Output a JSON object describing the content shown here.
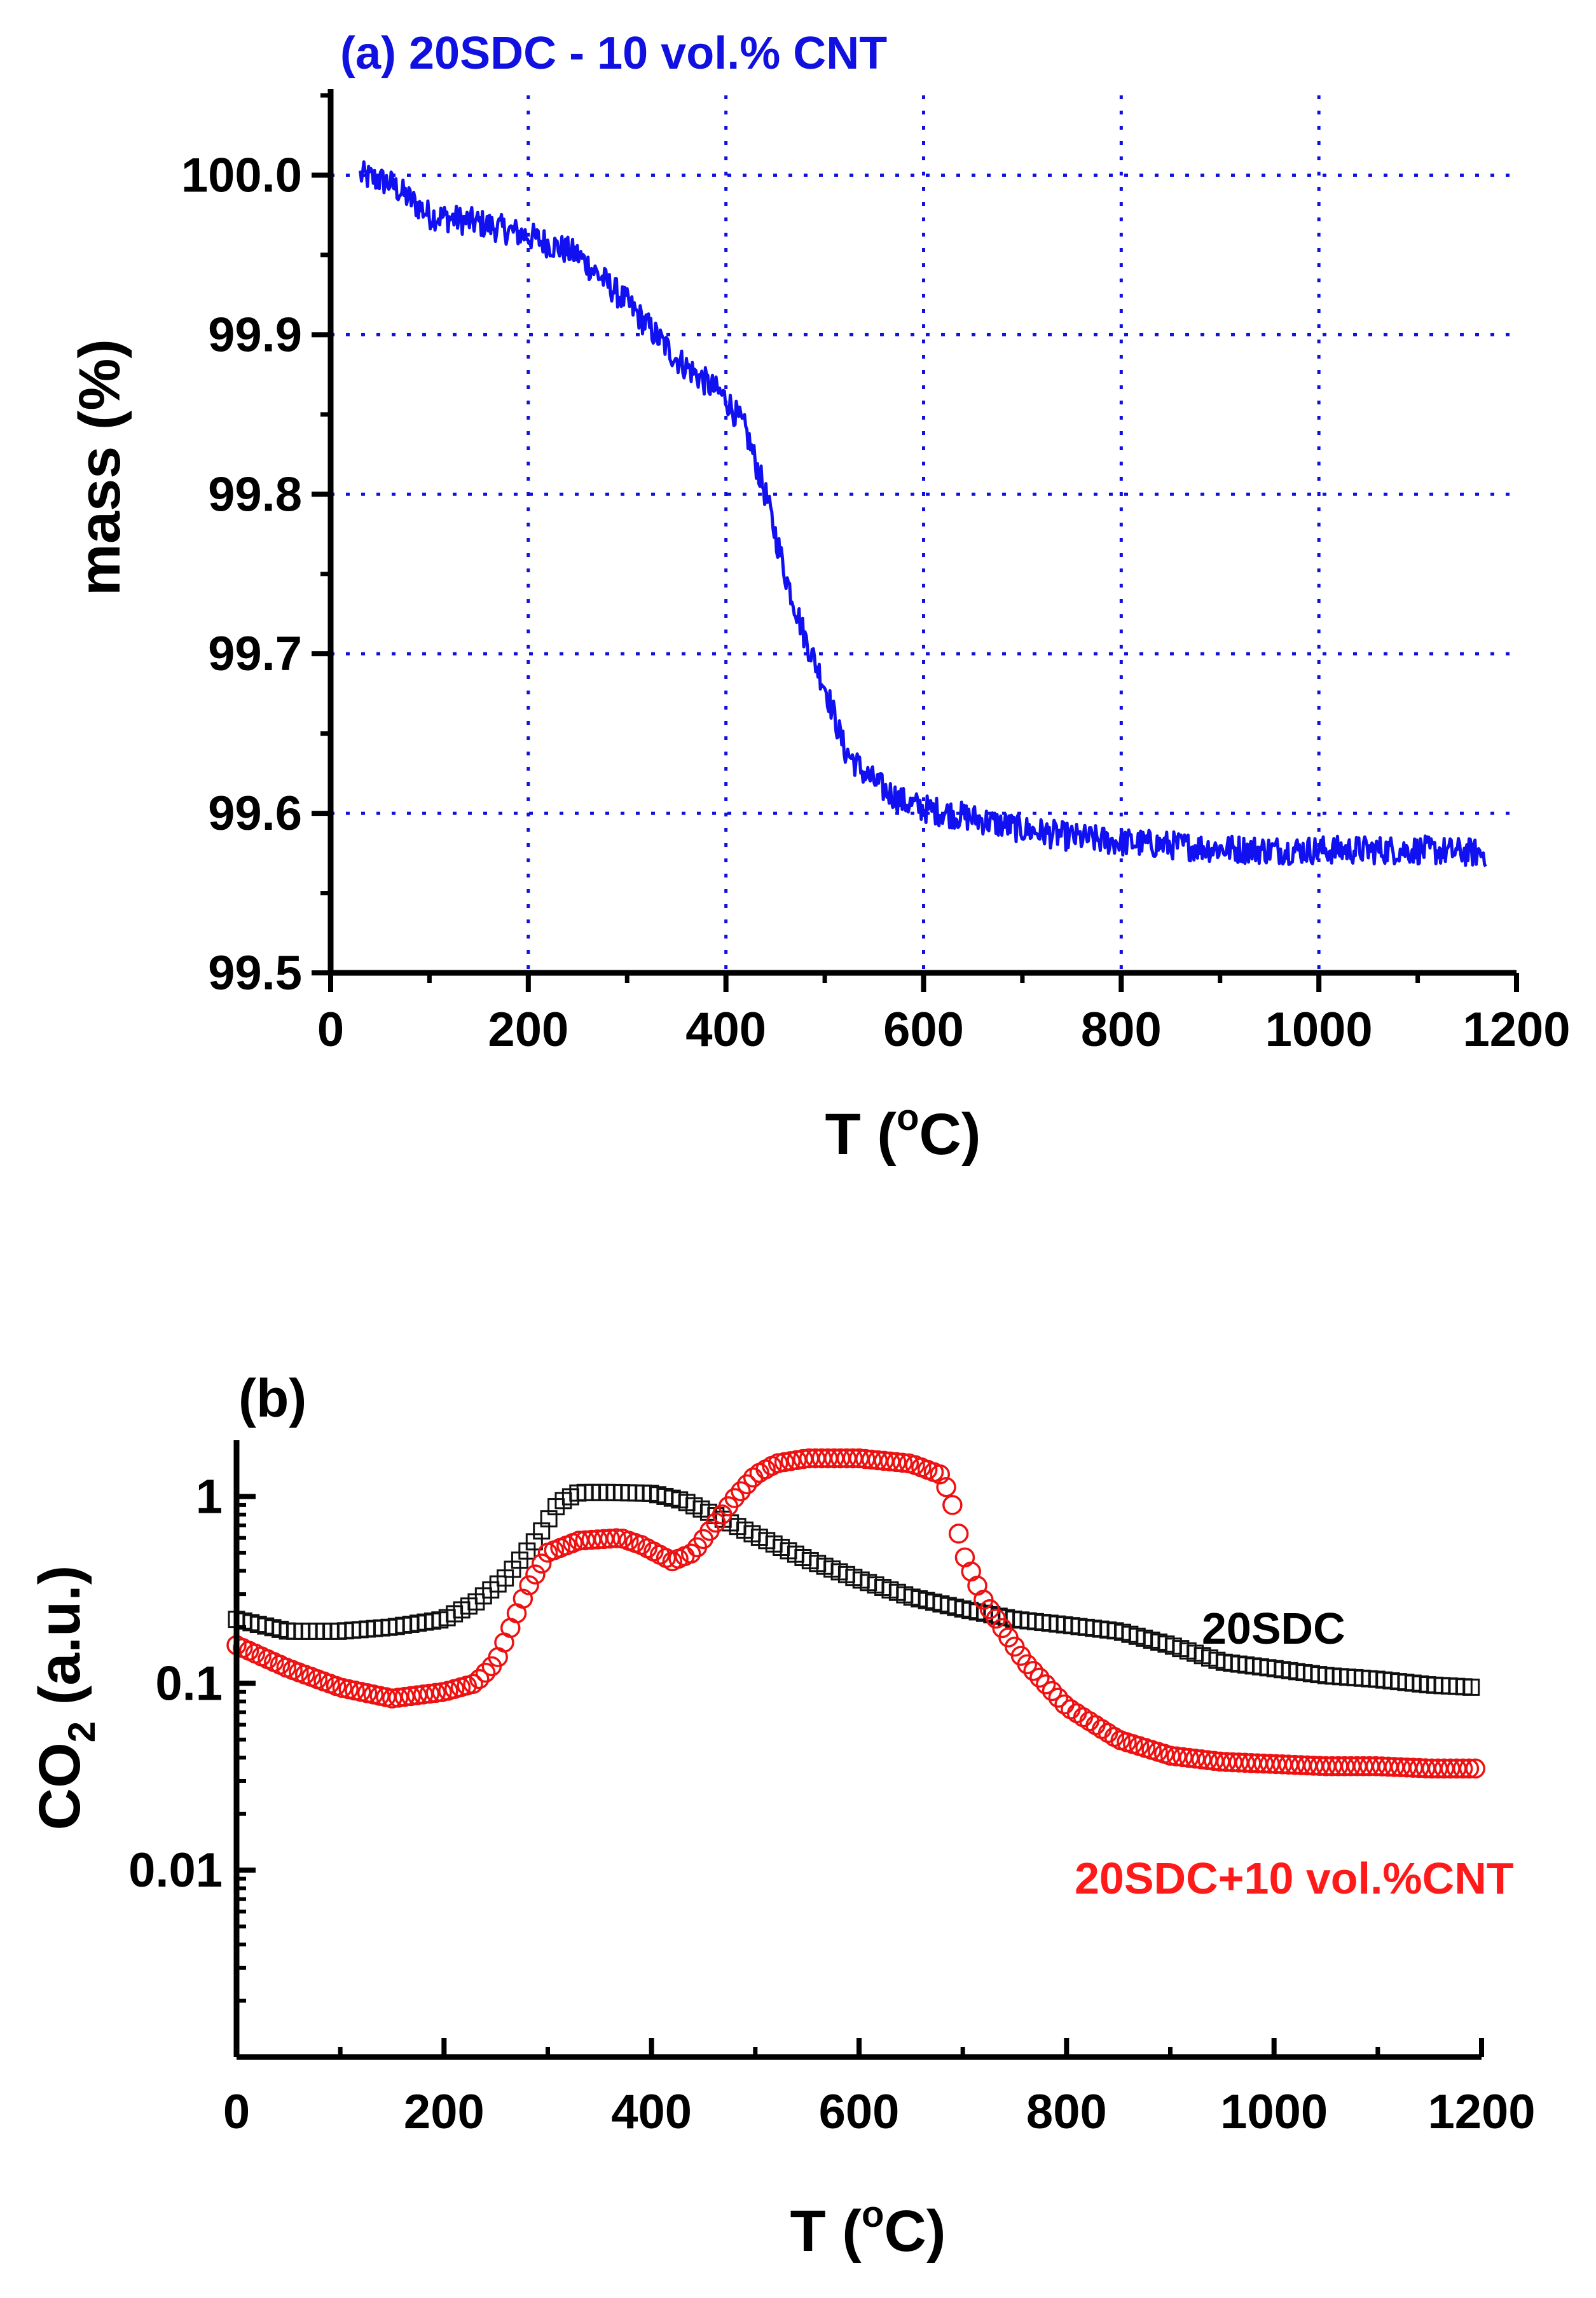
{
  "chart_data": [
    {
      "type": "line",
      "title": "(a) 20SDC - 10 vol.% CNT",
      "title_color": "#1010e0",
      "xlabel": "T (",
      "xlabel_sup": "o",
      "xlabel_end": "C)",
      "ylabel": "mass (%)",
      "xlim": [
        0,
        1200
      ],
      "ylim": [
        99.5,
        100.05
      ],
      "yscale": "linear",
      "grid": true,
      "grid_color": "#1010e0",
      "x_ticks": [
        0,
        200,
        400,
        600,
        800,
        1000,
        1200
      ],
      "x_tick_labels": [
        "0",
        "200",
        "400",
        "600",
        "800",
        "1000",
        "1200"
      ],
      "y_ticks": [
        99.5,
        99.6,
        99.7,
        99.8,
        99.9,
        100.0
      ],
      "y_tick_labels": [
        "99.5",
        "99.6",
        "99.7",
        "99.8",
        "99.9",
        "100.0"
      ],
      "series": [
        {
          "color": "#1010f0",
          "noise": 0.009,
          "x": [
            30,
            60,
            100,
            150,
            200,
            250,
            300,
            350,
            400,
            420,
            440,
            460,
            480,
            500,
            520,
            540,
            560,
            580,
            600,
            650,
            700,
            750,
            800,
            850,
            900,
            950,
            1000,
            1050,
            1100,
            1170
          ],
          "y": [
            100.0,
            99.995,
            99.975,
            99.97,
            99.962,
            99.95,
            99.92,
            99.885,
            99.86,
            99.84,
            99.8,
            99.75,
            99.71,
            99.68,
            99.64,
            99.625,
            99.615,
            99.607,
            99.603,
            99.597,
            99.59,
            99.585,
            99.582,
            99.58,
            99.578,
            99.577,
            99.577,
            99.577,
            99.577,
            99.575
          ]
        }
      ]
    },
    {
      "type": "scatter",
      "title": "(b)",
      "xlabel": "T (",
      "xlabel_sup": "o",
      "xlabel_end": "C)",
      "ylabel": "CO",
      "ylabel_sub": "2",
      "ylabel_end": " (a.u.)",
      "xlim": [
        0,
        1200
      ],
      "ylim": [
        0.001,
        2
      ],
      "yscale": "log",
      "grid": false,
      "x_ticks": [
        0,
        200,
        400,
        600,
        800,
        1000,
        1200
      ],
      "x_tick_labels": [
        "0",
        "200",
        "400",
        "600",
        "800",
        "1000",
        "1200"
      ],
      "y_ticks": [
        0.01,
        0.1,
        1
      ],
      "y_tick_labels": [
        "0.01",
        "0.1",
        "1"
      ],
      "series": [
        {
          "name": "20SDC",
          "label_color": "#000000",
          "color": "#111111",
          "marker": "square",
          "x": [
            0,
            50,
            100,
            150,
            200,
            230,
            260,
            290,
            310,
            330,
            360,
            400,
            430,
            460,
            500,
            550,
            600,
            650,
            700,
            750,
            800,
            850,
            900,
            950,
            1000,
            1050,
            1100,
            1150,
            1195
          ],
          "y": [
            0.22,
            0.19,
            0.19,
            0.2,
            0.22,
            0.27,
            0.37,
            0.6,
            0.92,
            1.05,
            1.05,
            1.04,
            0.95,
            0.8,
            0.62,
            0.46,
            0.36,
            0.29,
            0.25,
            0.22,
            0.205,
            0.19,
            0.16,
            0.13,
            0.12,
            0.11,
            0.105,
            0.098,
            0.095
          ]
        },
        {
          "name": "20SDC+10 vol.%CNT",
          "label_color": "#ff1a1a",
          "color": "#ee1111",
          "marker": "circle",
          "x": [
            0,
            50,
            100,
            150,
            200,
            230,
            250,
            280,
            300,
            330,
            370,
            390,
            420,
            440,
            460,
            480,
            500,
            520,
            550,
            600,
            650,
            680,
            690,
            700,
            720,
            740,
            760,
            800,
            850,
            900,
            950,
            1000,
            1050,
            1100,
            1150,
            1195
          ],
          "y": [
            0.16,
            0.12,
            0.095,
            0.083,
            0.09,
            0.1,
            0.13,
            0.32,
            0.5,
            0.58,
            0.6,
            0.55,
            0.45,
            0.5,
            0.7,
            0.98,
            1.3,
            1.5,
            1.6,
            1.6,
            1.5,
            1.3,
            0.9,
            0.5,
            0.28,
            0.19,
            0.13,
            0.075,
            0.05,
            0.041,
            0.038,
            0.037,
            0.036,
            0.036,
            0.035,
            0.035
          ]
        }
      ]
    }
  ]
}
